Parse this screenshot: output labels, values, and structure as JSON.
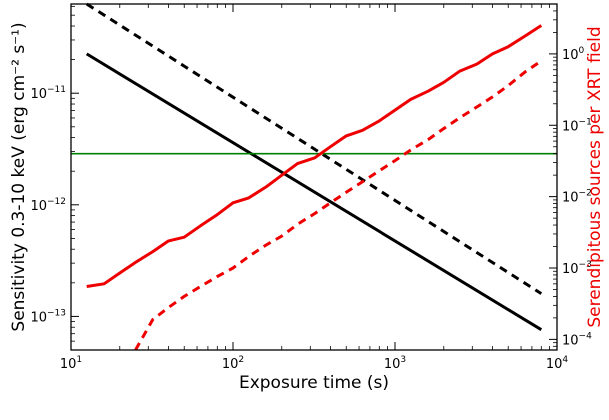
{
  "chart_data": {
    "type": "line",
    "xlabel": "Exposure time (s)",
    "ylabel_left": "Sensitivity 0.3-10 keV (erg cm⁻² s⁻¹)",
    "ylabel_right": "Serendipitous sources per XRT field",
    "x_scale": "log",
    "y_left_scale": "log",
    "y_right_scale": "log",
    "xlim": [
      10,
      10000
    ],
    "ylim_left": [
      5e-14,
      6.3e-11
    ],
    "ylim_right": [
      7.1e-05,
      5
    ],
    "x_ticks": [
      {
        "value": 10,
        "base": "10",
        "exp": "1"
      },
      {
        "value": 100,
        "base": "10",
        "exp": "2"
      },
      {
        "value": 1000,
        "base": "10",
        "exp": "3"
      },
      {
        "value": 10000,
        "base": "10",
        "exp": "4"
      }
    ],
    "y_left_ticks": [
      {
        "value": 1e-11,
        "base": "10",
        "exp": "−11"
      },
      {
        "value": 1e-12,
        "base": "10",
        "exp": "−12"
      },
      {
        "value": 1e-13,
        "base": "10",
        "exp": "−13"
      }
    ],
    "y_right_ticks": [
      {
        "value": 1,
        "base": "10",
        "exp": "0"
      },
      {
        "value": 0.1,
        "base": "10",
        "exp": "−1"
      },
      {
        "value": 0.01,
        "base": "10",
        "exp": "−2"
      },
      {
        "value": 0.001,
        "base": "10",
        "exp": "−3"
      },
      {
        "value": 0.0001,
        "base": "10",
        "exp": "−4"
      }
    ],
    "grid": false,
    "series": [
      {
        "axis": "left",
        "color": "#000000",
        "style": "solid",
        "points": [
          [
            12.5,
            2.25e-11
          ],
          [
            8000,
            7.6e-14
          ]
        ]
      },
      {
        "axis": "left",
        "color": "#000000",
        "style": "dashed",
        "points": [
          [
            12.5,
            6.3e-11
          ],
          [
            8000,
            1.6e-13
          ]
        ]
      },
      {
        "axis": "right",
        "color": "#008000",
        "style": "solid",
        "points": [
          [
            10,
            0.04
          ],
          [
            10000,
            0.04
          ]
        ]
      },
      {
        "axis": "right",
        "color": "#ee0000",
        "style": "solid",
        "points": [
          [
            12.5,
            0.00055
          ],
          [
            16,
            0.0006
          ],
          [
            20,
            0.00085
          ],
          [
            25,
            0.0012
          ],
          [
            32,
            0.0017
          ],
          [
            40,
            0.0024
          ],
          [
            50,
            0.0027
          ],
          [
            63,
            0.0039
          ],
          [
            80,
            0.0056
          ],
          [
            100,
            0.0082
          ],
          [
            125,
            0.0096
          ],
          [
            160,
            0.0137
          ],
          [
            200,
            0.02
          ],
          [
            250,
            0.029
          ],
          [
            320,
            0.035
          ],
          [
            400,
            0.05
          ],
          [
            500,
            0.071
          ],
          [
            630,
            0.085
          ],
          [
            800,
            0.115
          ],
          [
            1000,
            0.163
          ],
          [
            1250,
            0.23
          ],
          [
            1600,
            0.3
          ],
          [
            2000,
            0.4
          ],
          [
            2500,
            0.57
          ],
          [
            3200,
            0.72
          ],
          [
            4000,
            1.0
          ],
          [
            5000,
            1.26
          ],
          [
            6300,
            1.76
          ],
          [
            8000,
            2.5
          ]
        ]
      },
      {
        "axis": "right",
        "color": "#ee0000",
        "style": "dashed",
        "points": [
          [
            25,
            7.1e-05
          ],
          [
            32,
            0.00019
          ],
          [
            40,
            0.00028
          ],
          [
            50,
            0.0004
          ],
          [
            63,
            0.00055
          ],
          [
            80,
            0.00076
          ],
          [
            100,
            0.001
          ],
          [
            125,
            0.00145
          ],
          [
            160,
            0.0021
          ],
          [
            200,
            0.0028
          ],
          [
            250,
            0.0041
          ],
          [
            320,
            0.0058
          ],
          [
            400,
            0.0082
          ],
          [
            500,
            0.0115
          ],
          [
            630,
            0.0162
          ],
          [
            800,
            0.023
          ],
          [
            1000,
            0.032
          ],
          [
            1250,
            0.045
          ],
          [
            1600,
            0.063
          ],
          [
            2000,
            0.09
          ],
          [
            2500,
            0.127
          ],
          [
            3200,
            0.18
          ],
          [
            4000,
            0.25
          ],
          [
            5000,
            0.36
          ],
          [
            6300,
            0.55
          ],
          [
            8000,
            0.8
          ]
        ]
      }
    ]
  },
  "colors": {
    "right_axis_label": "#ee0000",
    "left_axis_label": "#000000"
  }
}
